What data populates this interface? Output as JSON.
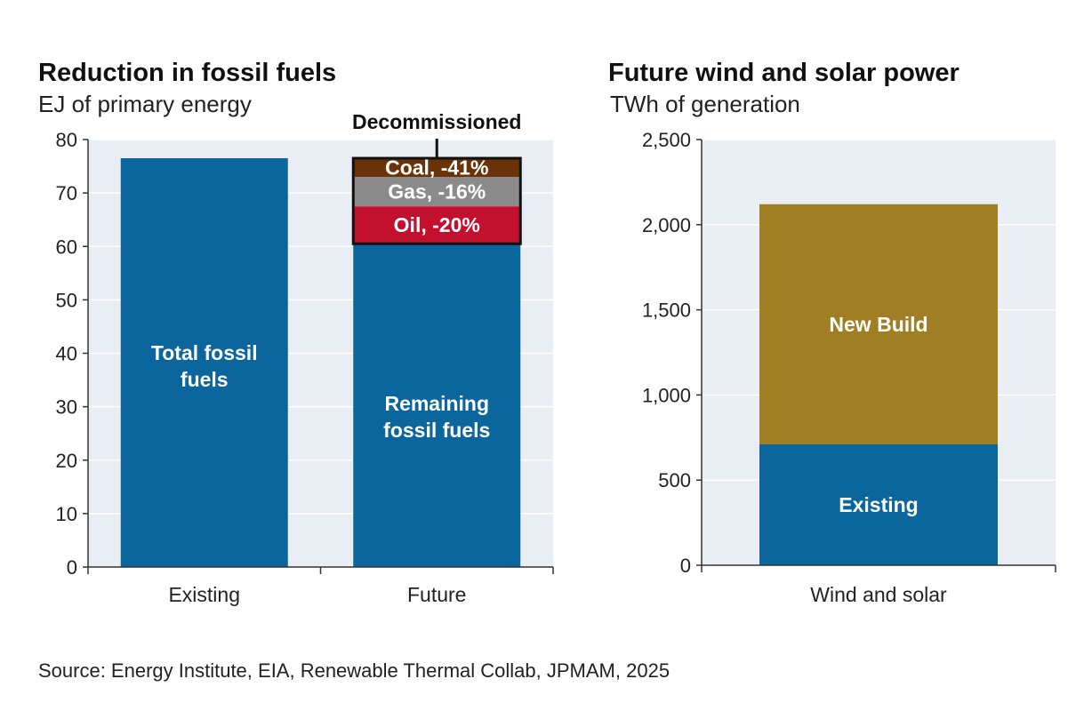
{
  "chart_data": [
    {
      "type": "bar",
      "title": "Reduction in fossil fuels",
      "ylabel": "EJ of primary energy",
      "ylim": [
        0,
        80
      ],
      "yticks": [
        0,
        10,
        20,
        30,
        40,
        50,
        60,
        70,
        80
      ],
      "categories": [
        "Existing",
        "Future"
      ],
      "series": [
        {
          "name": "Total fossil fuels",
          "values": [
            76.5,
            0
          ]
        },
        {
          "name": "Remaining fossil fuels",
          "values": [
            0,
            60.5
          ]
        },
        {
          "name": "Oil, -20%",
          "values": [
            0,
            7
          ]
        },
        {
          "name": "Gas, -16%",
          "values": [
            0,
            5.5
          ]
        },
        {
          "name": "Coal, -41%",
          "values": [
            0,
            3.5
          ]
        }
      ],
      "bar_labels": {
        "existing": [
          "Total fossil",
          "fuels"
        ],
        "remaining": [
          "Remaining",
          "fossil fuels"
        ]
      },
      "annotation": "Decommissioned",
      "colors": {
        "total": "#0b669e",
        "remaining": "#0b669e",
        "oil": "#c3102e",
        "gas": "#8b8b8b",
        "coal": "#6b3207"
      }
    },
    {
      "type": "bar",
      "title": "Future wind and solar power",
      "ylabel": "TWh of generation",
      "ylim": [
        0,
        2500
      ],
      "yticks": [
        0,
        500,
        1000,
        1500,
        2000,
        2500
      ],
      "ytick_labels": [
        "0",
        "500",
        "1,000",
        "1,500",
        "2,000",
        "2,500"
      ],
      "categories": [
        "Wind and solar"
      ],
      "series": [
        {
          "name": "Existing",
          "values": [
            710
          ]
        },
        {
          "name": "New Build",
          "values": [
            1410
          ]
        }
      ],
      "colors": {
        "existing": "#0b669e",
        "new_build": "#a07e24"
      }
    }
  ],
  "source": "Source: Energy Institute, EIA, Renewable Thermal Collab, JPMAM, 2025",
  "panel_background": "#e8eef3"
}
